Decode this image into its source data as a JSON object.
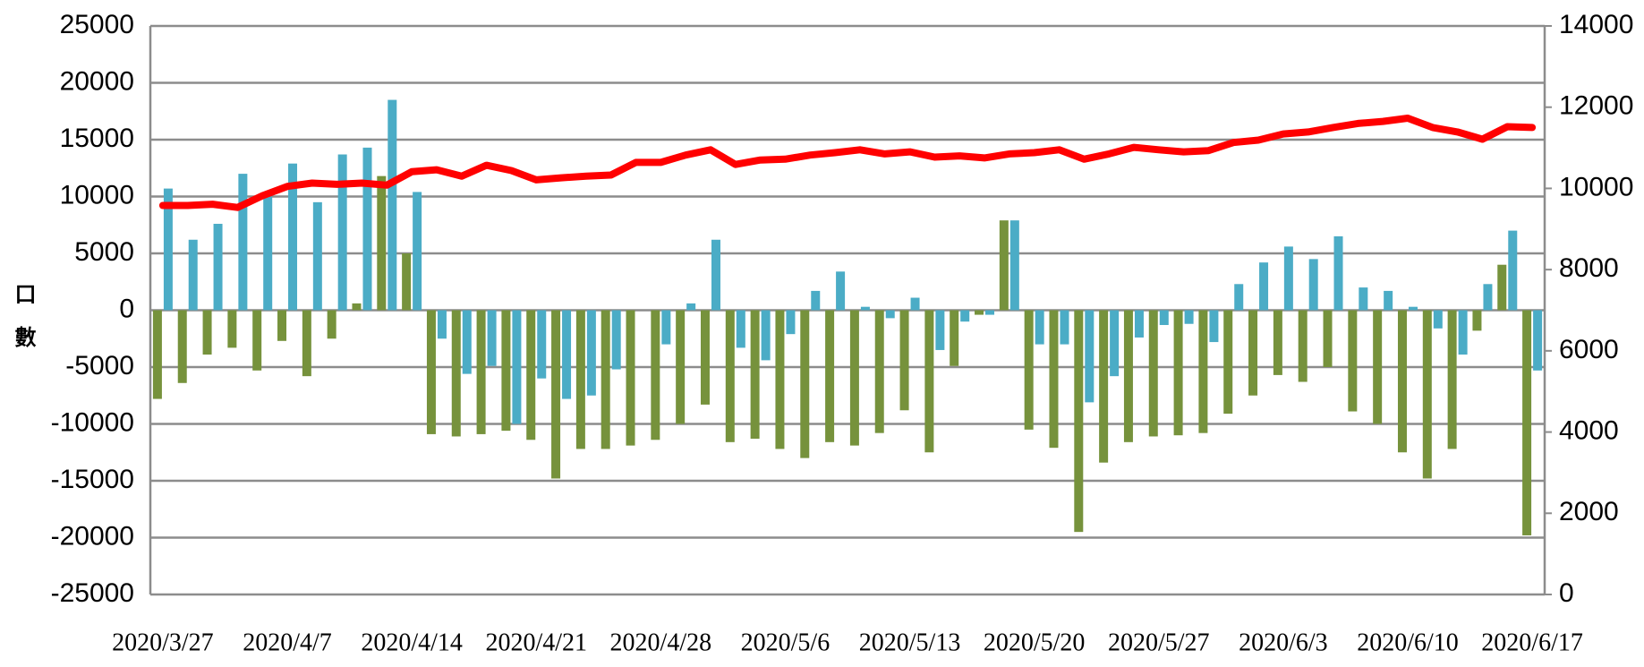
{
  "chart_data": {
    "type": "bar",
    "y_label": "口數",
    "categories": [
      "2020/3/27",
      null,
      null,
      null,
      null,
      "2020/4/7",
      null,
      null,
      null,
      null,
      "2020/4/14",
      null,
      null,
      null,
      null,
      "2020/4/21",
      null,
      null,
      null,
      null,
      "2020/4/28",
      null,
      null,
      null,
      null,
      "2020/5/6",
      null,
      null,
      null,
      null,
      "2020/5/13",
      null,
      null,
      null,
      null,
      "2020/5/20",
      null,
      null,
      null,
      null,
      "2020/5/27",
      null,
      null,
      null,
      null,
      "2020/6/3",
      null,
      null,
      null,
      null,
      "2020/6/10",
      null,
      null,
      null,
      null,
      "2020/6/17"
    ],
    "series": [
      {
        "color": "#76923c",
        "values": [
          -7800,
          -6400,
          -3900,
          -3300,
          -5300,
          -2700,
          -5800,
          -2500,
          600,
          11800,
          5000,
          -10900,
          -11100,
          -10900,
          -10600,
          -11400,
          -14800,
          -12200,
          -12200,
          -11900,
          -11400,
          -10000,
          -8300,
          -11600,
          -11300,
          -12200,
          -13000,
          -11600,
          -11900,
          -10800,
          -8800,
          -12500,
          -4900,
          -400,
          7900,
          -10500,
          -12100,
          -19500,
          -13400,
          -11600,
          -11100,
          -11000,
          -10800,
          -9100,
          -7500,
          -5700,
          -6300,
          -5000,
          -8900,
          -10000,
          -12500,
          -14800,
          -12200,
          -1800,
          4000,
          -19800
        ]
      },
      {
        "color": "#4bacc6",
        "values": [
          10700,
          6200,
          7600,
          12000,
          10000,
          12900,
          9500,
          13700,
          14300,
          18500,
          10400,
          -2500,
          -5600,
          -4900,
          -10000,
          -6000,
          -7800,
          -7500,
          -5200,
          0,
          -3000,
          600,
          6200,
          -3300,
          -4400,
          -2100,
          1700,
          3400,
          300,
          -700,
          1100,
          -3500,
          -1000,
          -400,
          7900,
          -3000,
          -3000,
          -8100,
          -5800,
          -2400,
          -1300,
          -1200,
          -2800,
          2300,
          4200,
          5600,
          4500,
          6500,
          2000,
          1700,
          300,
          -1600,
          -3900,
          2300,
          7000,
          -5300
        ]
      },
      {
        "type": "line",
        "axis": "y2",
        "color": "#ff0000",
        "values": [
          9580,
          9580,
          9610,
          9530,
          9820,
          10050,
          10130,
          10100,
          10130,
          10080,
          10410,
          10460,
          10300,
          10570,
          10440,
          10210,
          10260,
          10300,
          10330,
          10640,
          10640,
          10820,
          10950,
          10590,
          10700,
          10720,
          10820,
          10880,
          10950,
          10850,
          10900,
          10770,
          10800,
          10750,
          10850,
          10880,
          10950,
          10720,
          10850,
          11010,
          10950,
          10900,
          10930,
          11130,
          11190,
          11340,
          11390,
          11500,
          11600,
          11650,
          11730,
          11500,
          11390,
          11210,
          11520,
          11500
        ]
      }
    ],
    "ylim": [
      -25000,
      25000
    ],
    "yticks": [
      -25000,
      -20000,
      -15000,
      -10000,
      -5000,
      0,
      5000,
      10000,
      15000,
      20000,
      25000
    ],
    "y2lim": [
      0,
      14000
    ],
    "y2ticks": [
      0,
      2000,
      4000,
      6000,
      8000,
      10000,
      12000,
      14000
    ],
    "grid": true
  }
}
